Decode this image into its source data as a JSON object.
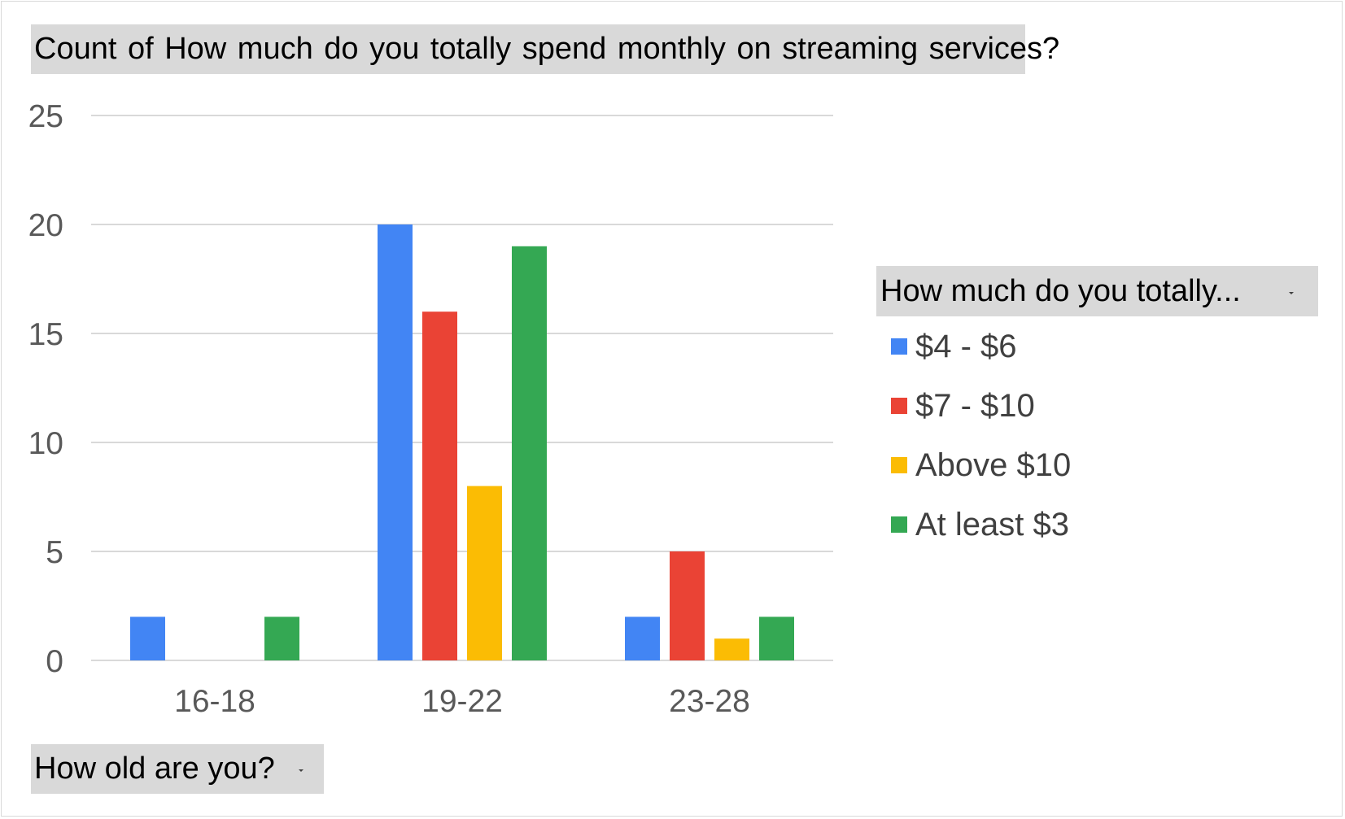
{
  "title": "Count of How much do you totally spend monthly on  streaming services?",
  "axis_field": {
    "label": "How old are you?",
    "icon": "dropdown-arrow-icon"
  },
  "legend_field": {
    "label": "How much do you totally...",
    "icon": "dropdown-arrow-icon"
  },
  "chart_data": {
    "type": "bar",
    "title": "Count of How much do you totally spend monthly on  streaming services?",
    "xlabel": "How old are you?",
    "ylabel": "",
    "ylim": [
      0,
      25
    ],
    "yticks": [
      0,
      5,
      10,
      15,
      20,
      25
    ],
    "grid": true,
    "legend_position": "right",
    "legend_title": "How much do you totally...",
    "categories": [
      "16-18",
      "19-22",
      "23-28"
    ],
    "series": [
      {
        "name": "$4 - $6",
        "color": "#4285f4",
        "values": [
          2,
          20,
          2
        ]
      },
      {
        "name": "$7 - $10",
        "color": "#ea4335",
        "values": [
          0,
          16,
          5
        ]
      },
      {
        "name": "Above $10",
        "color": "#fbbc04",
        "values": [
          0,
          8,
          1
        ]
      },
      {
        "name": "At least $3",
        "color": "#34a853",
        "values": [
          2,
          19,
          2
        ]
      }
    ]
  }
}
